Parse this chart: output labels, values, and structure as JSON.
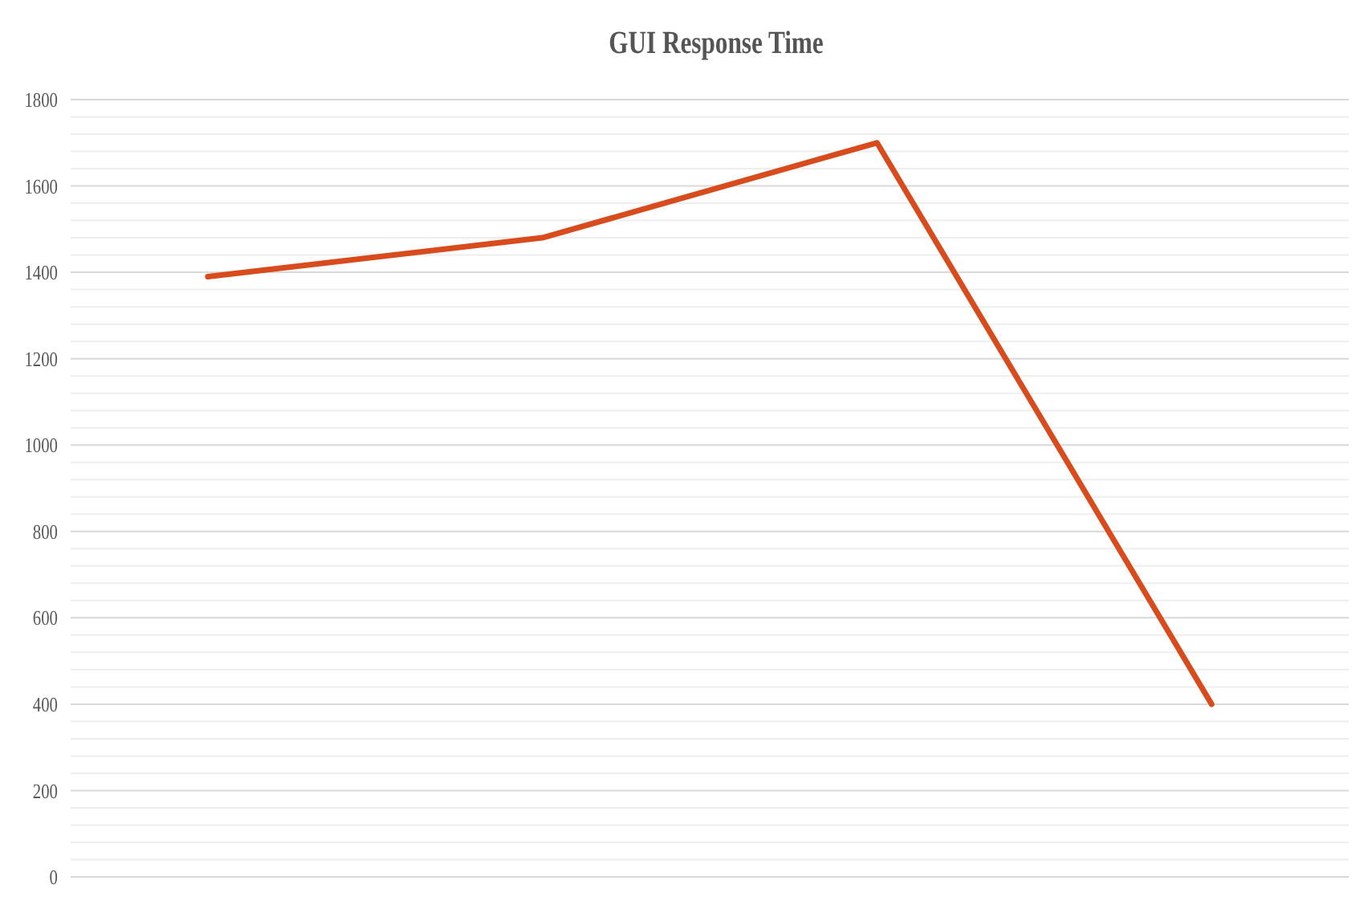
{
  "chart_data": {
    "type": "line",
    "title": "GUI Response Time",
    "categories": [
      null,
      null,
      null,
      null
    ],
    "series": [
      {
        "color": "#d84b1c",
        "values": [
          1390,
          1480,
          1700,
          400
        ]
      }
    ],
    "ylim": [
      0,
      1800
    ],
    "yticks": [
      0,
      {
        "value": 40,
        "label": null
      },
      {
        "value": 80,
        "label": null
      },
      {
        "value": 120,
        "label": null
      },
      {
        "value": 160,
        "label": null
      },
      200,
      {
        "value": 240,
        "label": null
      },
      {
        "value": 280,
        "label": null
      },
      {
        "value": 320,
        "label": null
      },
      {
        "value": 360,
        "label": null
      },
      400,
      {
        "value": 440,
        "label": null
      },
      {
        "value": 480,
        "label": null
      },
      {
        "value": 520,
        "label": null
      },
      {
        "value": 560,
        "label": null
      },
      600,
      {
        "value": 640,
        "label": null
      },
      {
        "value": 680,
        "label": null
      },
      {
        "value": 720,
        "label": null
      },
      {
        "value": 760,
        "label": null
      },
      800,
      {
        "value": 840,
        "label": null
      },
      {
        "value": 880,
        "label": null
      },
      {
        "value": 920,
        "label": null
      },
      {
        "value": 960,
        "label": null
      },
      1000,
      {
        "value": 1040,
        "label": null
      },
      {
        "value": 1080,
        "label": null
      },
      {
        "value": 1120,
        "label": null
      },
      {
        "value": 1160,
        "label": null
      },
      1200,
      {
        "value": 1240,
        "label": null
      },
      {
        "value": 1280,
        "label": null
      },
      {
        "value": 1320,
        "label": null
      },
      {
        "value": 1360,
        "label": null
      },
      1400,
      {
        "value": 1440,
        "label": null
      },
      {
        "value": 1480,
        "label": null
      },
      {
        "value": 1520,
        "label": null
      },
      {
        "value": 1560,
        "label": null
      },
      1600,
      {
        "value": 1640,
        "label": null
      },
      {
        "value": 1680,
        "label": null
      },
      {
        "value": 1720,
        "label": null
      },
      {
        "value": 1760,
        "label": null
      },
      1800
    ],
    "grid": "y",
    "marker": "none",
    "line_style": "solid"
  }
}
